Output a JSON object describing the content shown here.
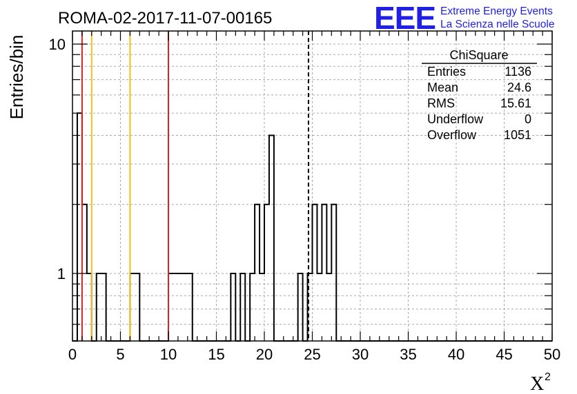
{
  "chart_data": {
    "type": "histogram",
    "title": "ROMA-02-2017-11-07-00165",
    "xlabel": "X",
    "xlabel_superscript": "2",
    "ylabel": "Entries/bin",
    "xlim": [
      0,
      50
    ],
    "ylim": [
      0.55,
      11.5
    ],
    "log_y": true,
    "grid": true,
    "bin_width": 0.5,
    "x_ticks": [
      "0",
      "5",
      "10",
      "15",
      "20",
      "25",
      "30",
      "35",
      "40",
      "45",
      "50"
    ],
    "y_ticks": [
      "1",
      "10"
    ],
    "counts": [
      0,
      5,
      2,
      1,
      0,
      1,
      1,
      0,
      0,
      0,
      0,
      0,
      1,
      1,
      0,
      0,
      0,
      0,
      0,
      0,
      1,
      1,
      1,
      1,
      1,
      0,
      0,
      0,
      0,
      0,
      0,
      0,
      0,
      1,
      0,
      1,
      0,
      1,
      2,
      1,
      2,
      4,
      0,
      0,
      0,
      0,
      0,
      1,
      0,
      1,
      2,
      1,
      2,
      1,
      2,
      0,
      0,
      0,
      0,
      0,
      0,
      0,
      0,
      0,
      0,
      0,
      0,
      0,
      0,
      0,
      0,
      0,
      0,
      0,
      0,
      0,
      0,
      0,
      0,
      0,
      0,
      0,
      0,
      0,
      0,
      0,
      0,
      0,
      0,
      0,
      0,
      0,
      0,
      0,
      0,
      0,
      0,
      0,
      0,
      0
    ],
    "counts_note_unused": [],
    "vertical_lines": [
      {
        "x": 1.0,
        "color": "#e02020",
        "style": "solid"
      },
      {
        "x": 2.0,
        "color": "#f0c020",
        "style": "solid"
      },
      {
        "x": 6.0,
        "color": "#f0c020",
        "style": "solid"
      },
      {
        "x": 10.0,
        "color": "#e02020",
        "style": "solid"
      },
      {
        "x": 24.6,
        "color": "#000000",
        "style": "dashed"
      }
    ],
    "stats_box": {
      "title": "ChiSquare",
      "rows": [
        {
          "label": "Entries",
          "value": "1136"
        },
        {
          "label": "Mean",
          "value": "24.6"
        },
        {
          "label": "RMS",
          "value": "15.61"
        },
        {
          "label": "Underflow",
          "value": "0"
        },
        {
          "label": "Overflow",
          "value": "1051"
        }
      ]
    }
  },
  "logo": {
    "text": "EEE",
    "line1": "Extreme Energy Events",
    "line2": "La Scienza nelle Scuole",
    "color": "#1f1fe6"
  }
}
